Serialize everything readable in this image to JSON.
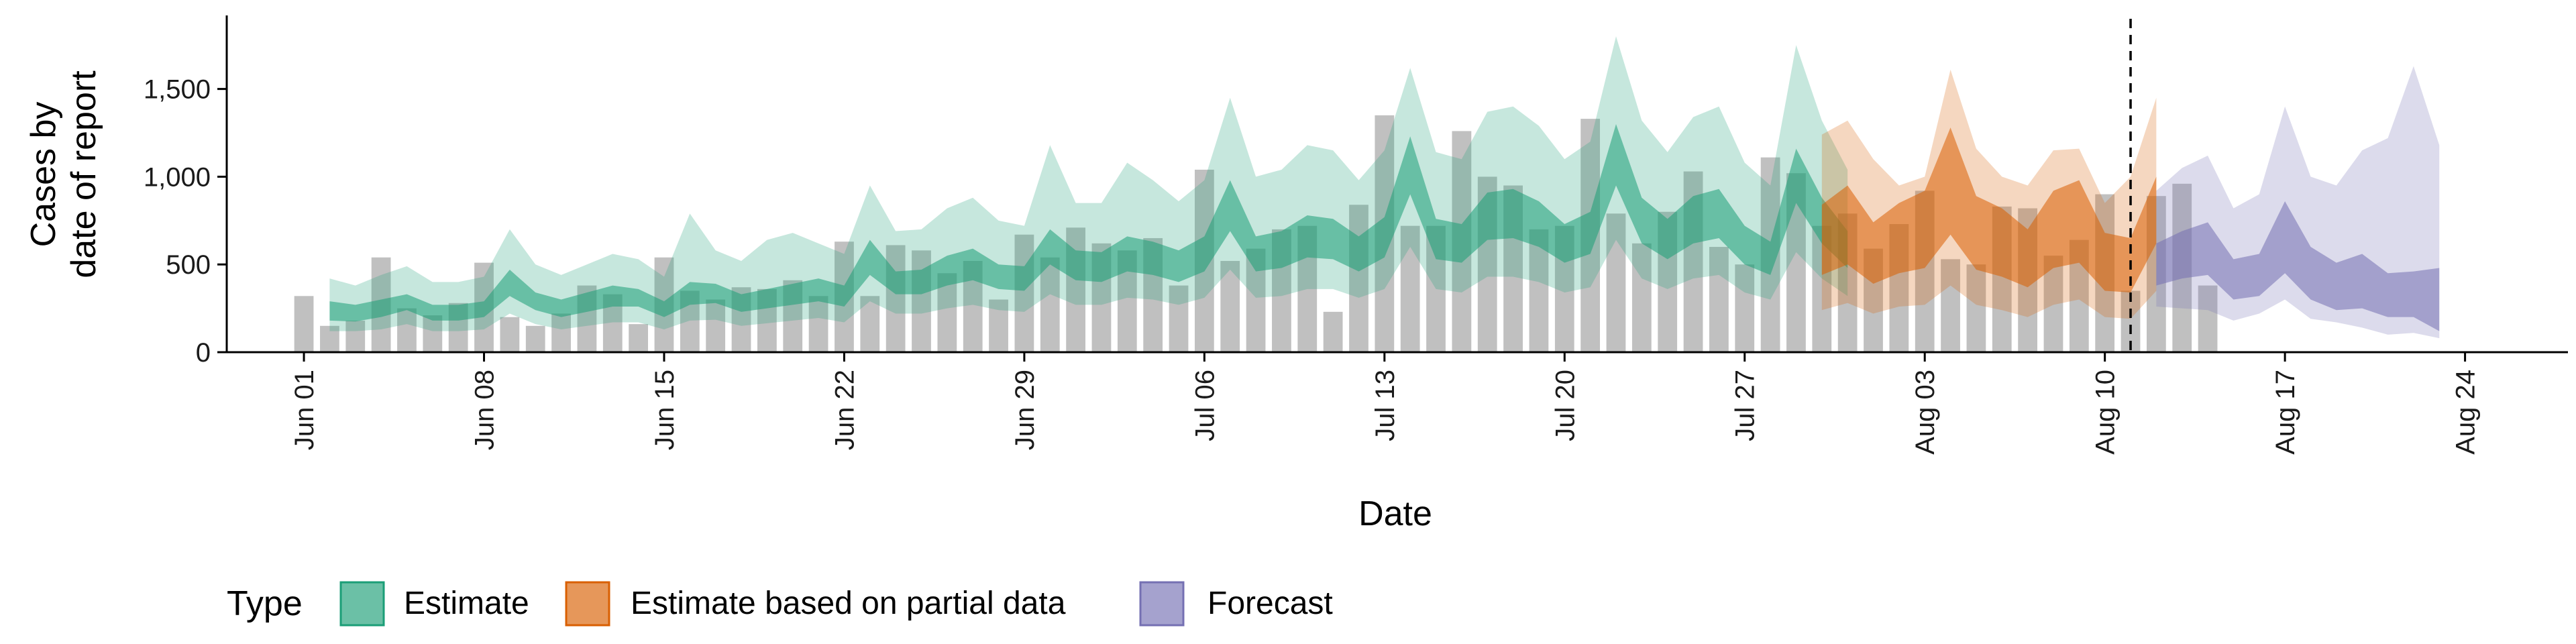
{
  "chart_data": {
    "type": "area",
    "xlabel": "Date",
    "ylabel_line1": "Cases by",
    "ylabel_line2": "date of report",
    "ylim": [
      0,
      1900
    ],
    "yticks": [
      0,
      500,
      1000,
      1500
    ],
    "ytick_labels": [
      "0",
      "500",
      "1,000",
      "1,500"
    ],
    "xlim": [
      "2020-05-29",
      "2020-08-28"
    ],
    "xticks": [
      "2020-06-01",
      "2020-06-08",
      "2020-06-15",
      "2020-06-22",
      "2020-06-29",
      "2020-07-06",
      "2020-07-13",
      "2020-07-20",
      "2020-07-27",
      "2020-08-03",
      "2020-08-10",
      "2020-08-17",
      "2020-08-24"
    ],
    "xtick_labels": [
      "Jun 01",
      "Jun 08",
      "Jun 15",
      "Jun 22",
      "Jun 29",
      "Jul 06",
      "Jul 13",
      "Jul 20",
      "Jul 27",
      "Aug 03",
      "Aug 10",
      "Aug 17",
      "Aug 24"
    ],
    "forecast_date": "2020-08-11",
    "grid": false,
    "legend_position": "bottom",
    "legend_title": "Type",
    "legend": [
      {
        "label": "Estimate",
        "color": "#1b9e77"
      },
      {
        "label": "Estimate based on partial data",
        "color": "#d95f02"
      },
      {
        "label": "Forecast",
        "color": "#7570b3"
      }
    ],
    "bar_color": "#999999",
    "bar_start_date": "2020-06-01",
    "reported_cases": [
      320,
      150,
      180,
      540,
      250,
      210,
      280,
      510,
      200,
      150,
      220,
      380,
      330,
      160,
      540,
      350,
      300,
      370,
      360,
      410,
      320,
      630,
      320,
      610,
      580,
      450,
      520,
      300,
      670,
      540,
      710,
      620,
      580,
      650,
      380,
      1040,
      520,
      590,
      700,
      720,
      230,
      840,
      1350,
      720,
      720,
      1260,
      1000,
      950,
      700,
      720,
      1330,
      790,
      620,
      800,
      1030,
      600,
      500,
      1110,
      1020,
      720,
      790,
      590,
      730,
      920,
      530,
      500,
      830,
      820,
      550,
      640,
      900,
      350,
      890,
      960,
      380
    ],
    "series": [
      {
        "name": "Estimate",
        "start_date": "2020-06-02",
        "inner_lo": [
          180,
          175,
          200,
          240,
          180,
          180,
          200,
          320,
          240,
          200,
          230,
          260,
          260,
          200,
          270,
          280,
          230,
          250,
          270,
          290,
          260,
          440,
          330,
          330,
          380,
          410,
          360,
          350,
          500,
          410,
          400,
          460,
          440,
          400,
          460,
          690,
          460,
          480,
          540,
          530,
          460,
          540,
          900,
          530,
          510,
          640,
          650,
          600,
          510,
          560,
          950,
          620,
          530,
          620,
          650,
          500,
          440,
          850,
          620,
          480
        ],
        "inner_hi": [
          290,
          270,
          300,
          330,
          270,
          270,
          290,
          470,
          340,
          300,
          340,
          380,
          360,
          290,
          400,
          390,
          330,
          360,
          390,
          420,
          380,
          640,
          460,
          470,
          550,
          590,
          500,
          490,
          700,
          580,
          570,
          660,
          630,
          580,
          660,
          980,
          660,
          690,
          780,
          760,
          660,
          770,
          1230,
          760,
          730,
          910,
          930,
          860,
          730,
          800,
          1300,
          880,
          760,
          890,
          930,
          720,
          630,
          1160,
          880,
          690
        ],
        "outer_lo": [
          120,
          120,
          130,
          160,
          120,
          120,
          130,
          220,
          160,
          130,
          150,
          170,
          170,
          130,
          180,
          185,
          150,
          165,
          180,
          195,
          170,
          290,
          220,
          220,
          250,
          270,
          240,
          230,
          330,
          270,
          270,
          310,
          300,
          270,
          310,
          470,
          310,
          320,
          360,
          360,
          310,
          360,
          600,
          360,
          340,
          430,
          430,
          400,
          340,
          370,
          640,
          420,
          360,
          420,
          440,
          340,
          300,
          570,
          420,
          320
        ],
        "outer_hi": [
          420,
          380,
          440,
          490,
          400,
          400,
          430,
          700,
          500,
          440,
          500,
          560,
          530,
          430,
          790,
          580,
          520,
          640,
          680,
          620,
          560,
          950,
          690,
          700,
          820,
          880,
          750,
          720,
          1180,
          850,
          850,
          1080,
          980,
          860,
          980,
          1450,
          1000,
          1040,
          1180,
          1150,
          980,
          1150,
          1620,
          1140,
          1100,
          1370,
          1400,
          1290,
          1100,
          1200,
          1800,
          1320,
          1140,
          1340,
          1400,
          1080,
          950,
          1750,
          1320,
          1040
        ]
      },
      {
        "name": "Estimate based on partial data",
        "start_date": "2020-07-30",
        "inner_lo": [
          440,
          500,
          390,
          450,
          480,
          670,
          470,
          430,
          370,
          480,
          510,
          350,
          340,
          620
        ],
        "inner_hi": [
          840,
          950,
          740,
          850,
          920,
          1280,
          890,
          820,
          700,
          920,
          980,
          680,
          650,
          1000
        ],
        "outer_lo": [
          240,
          280,
          220,
          260,
          270,
          380,
          270,
          240,
          200,
          270,
          300,
          200,
          190,
          350
        ],
        "outer_hi": [
          1240,
          1320,
          1100,
          950,
          1000,
          1610,
          1160,
          1000,
          950,
          1150,
          1160,
          850,
          1000,
          1450
        ]
      },
      {
        "name": "Forecast",
        "start_date": "2020-08-12",
        "inner_lo": [
          380,
          420,
          440,
          300,
          320,
          450,
          300,
          240,
          250,
          200,
          200,
          120
        ],
        "inner_hi": [
          620,
          690,
          740,
          530,
          560,
          860,
          600,
          510,
          560,
          450,
          460,
          480
        ],
        "outer_lo": [
          260,
          250,
          240,
          180,
          220,
          300,
          190,
          170,
          140,
          100,
          110,
          80
        ],
        "outer_hi": [
          920,
          1050,
          1120,
          820,
          900,
          1400,
          1000,
          950,
          1150,
          1220,
          1630,
          1180
        ]
      }
    ]
  }
}
